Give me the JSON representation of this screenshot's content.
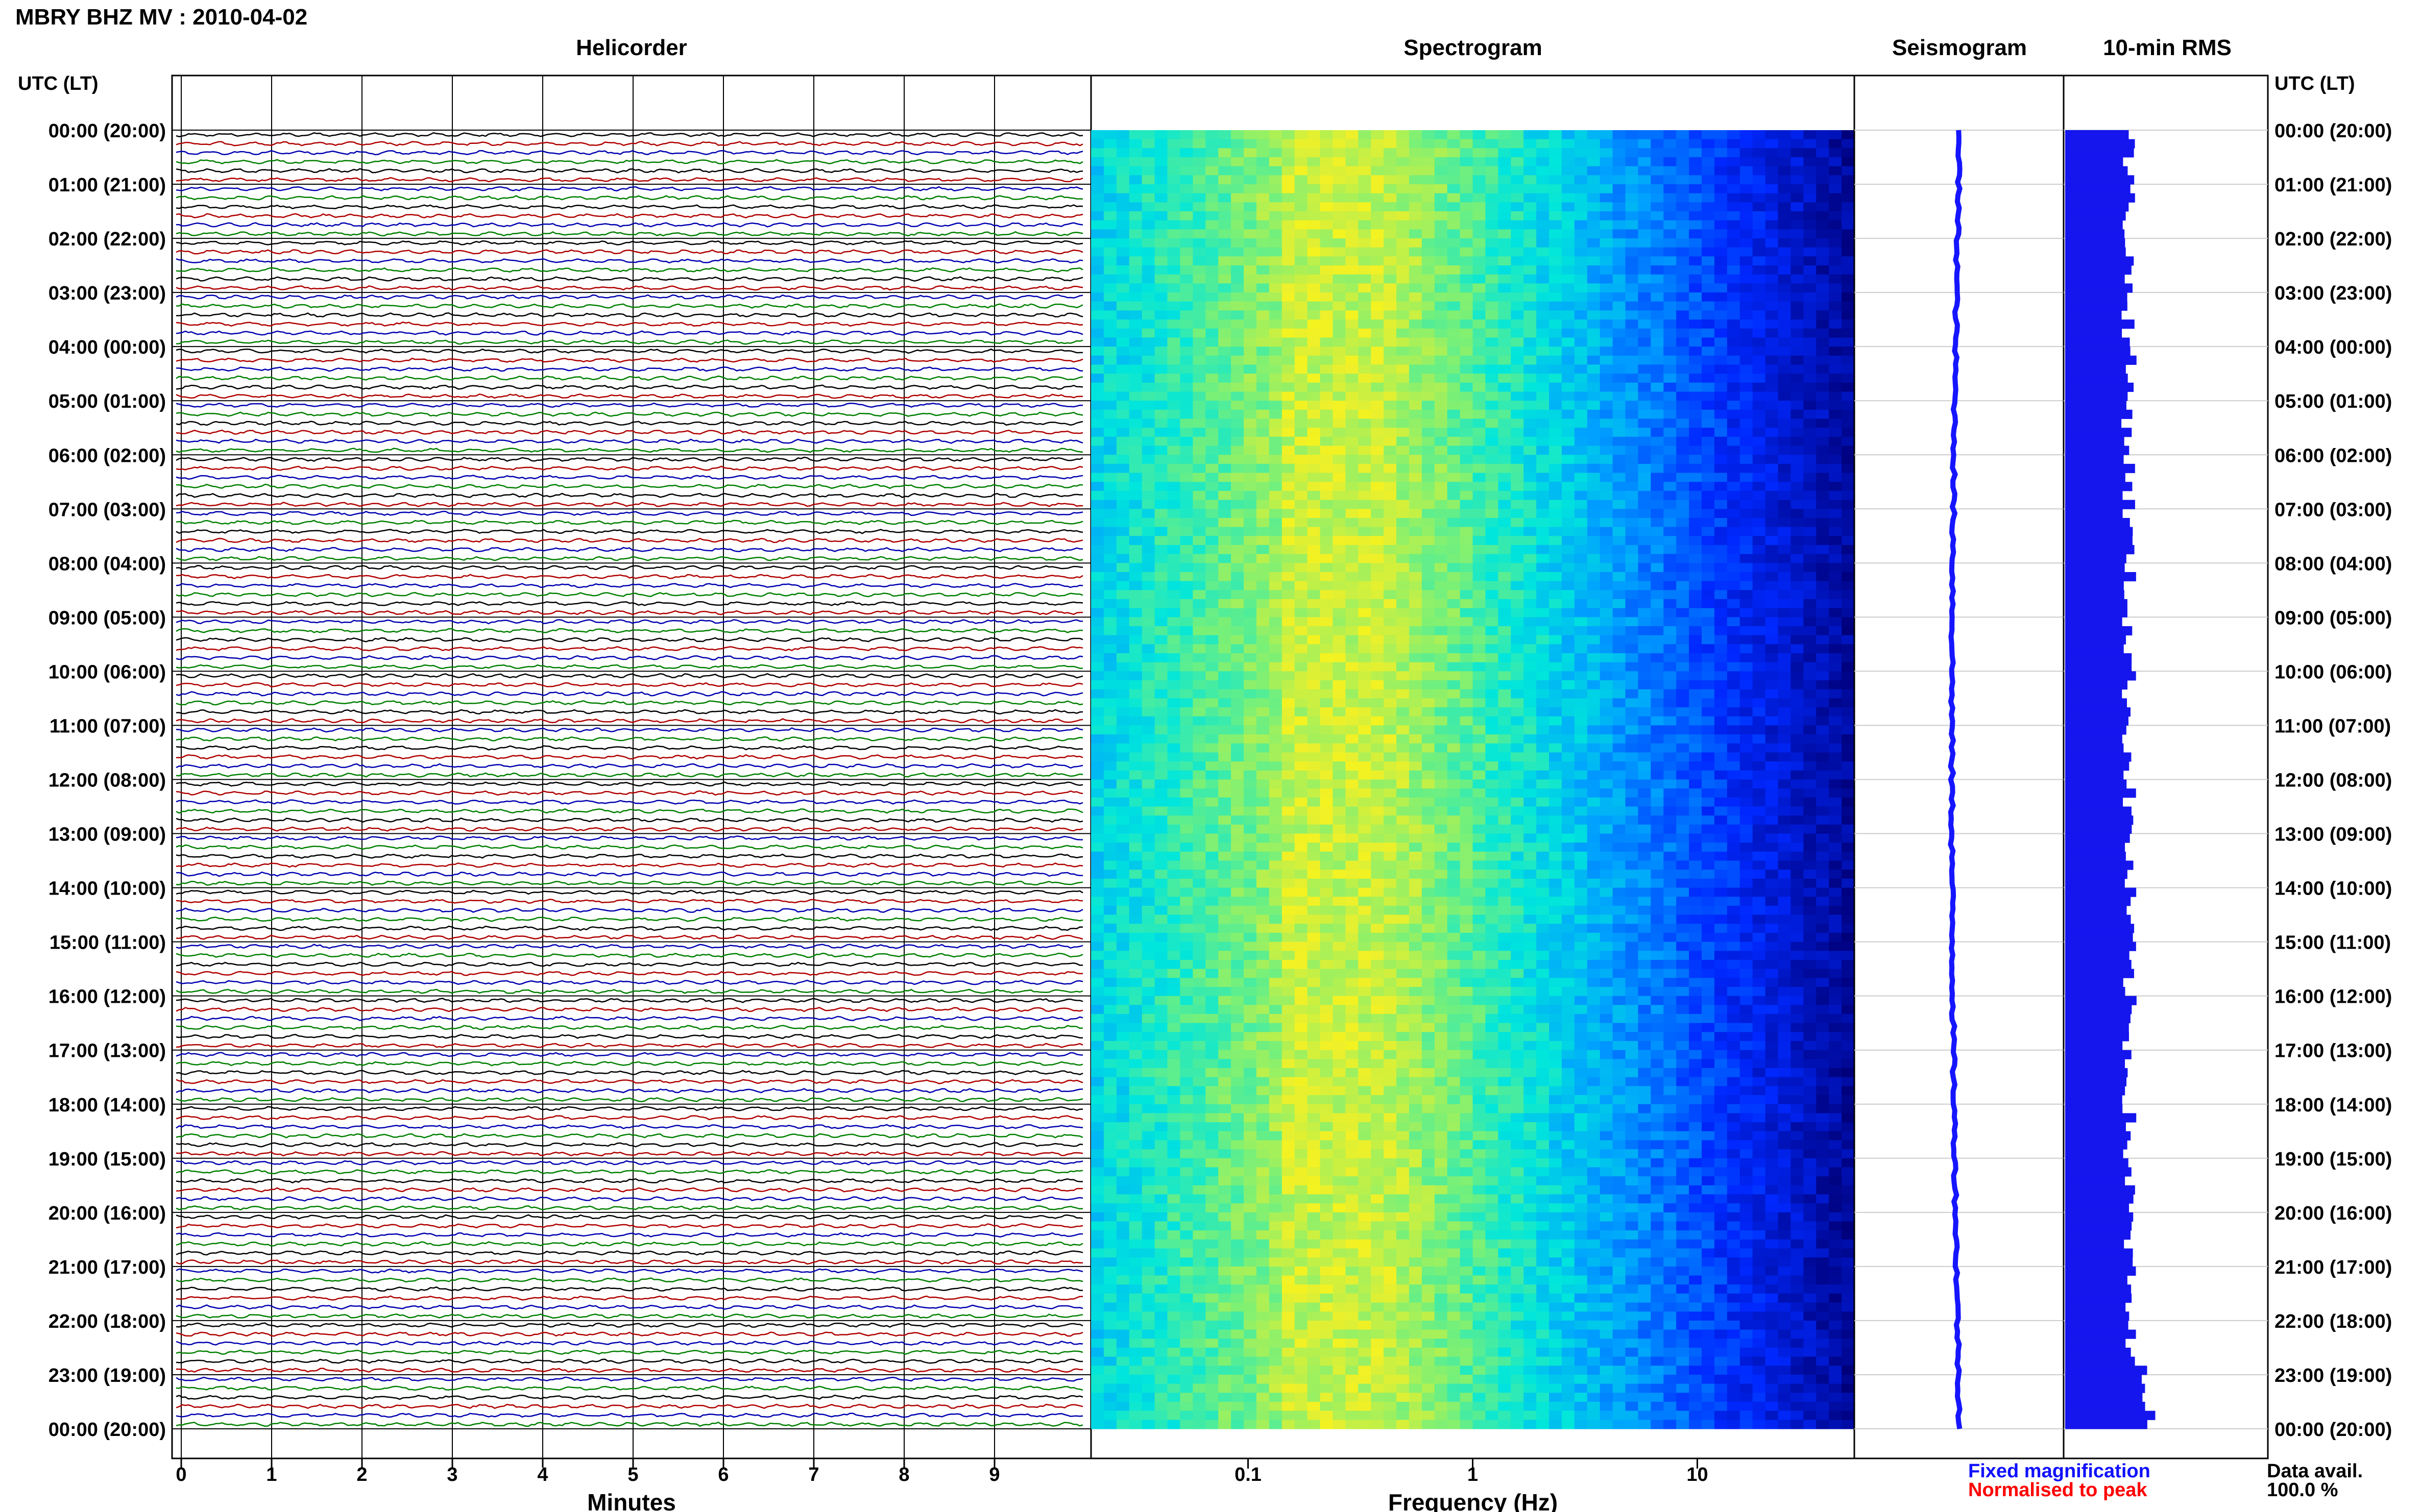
{
  "title": "MBRY BHZ MV : 2010-04-02",
  "panels": {
    "helicorder": "Helicorder",
    "spectrogram": "Spectrogram",
    "seismogram": "Seismogram",
    "rms": "10-min RMS"
  },
  "axis_header_left": "UTC (LT)",
  "axis_header_right": "UTC (LT)",
  "x_label_minutes": "Minutes",
  "x_label_frequency": "Frequency (Hz)",
  "legend": {
    "fixed": "Fixed magnification",
    "normalised": "Normalised to peak",
    "fixed_color": "#1010ff",
    "normalised_color": "#ff0000"
  },
  "data_avail_label": "Data avail.",
  "data_avail_value": "100.0 %",
  "colors": {
    "trace_cycle": [
      "#000000",
      "#b00000",
      "#0000b0",
      "#008000"
    ],
    "rms_bar": "#1515ee",
    "spectrogram_low": "#00007a",
    "spectrogram_high": "#ffff00"
  },
  "chart_data": [
    {
      "type": "line",
      "name": "helicorder",
      "title": "Helicorder",
      "xlabel": "Minutes",
      "xlim": [
        0,
        10
      ],
      "xticks": [
        "0",
        "1",
        "2",
        "3",
        "4",
        "5",
        "6",
        "7",
        "8",
        "9"
      ],
      "rows_per_hour": 6,
      "hour_labels": [
        "00:00 (20:00)",
        "01:00 (21:00)",
        "02:00 (22:00)",
        "03:00 (23:00)",
        "04:00 (00:00)",
        "05:00 (01:00)",
        "06:00 (02:00)",
        "07:00 (03:00)",
        "08:00 (04:00)",
        "09:00 (05:00)",
        "10:00 (06:00)",
        "11:00 (07:00)",
        "12:00 (08:00)",
        "13:00 (09:00)",
        "14:00 (10:00)",
        "15:00 (11:00)",
        "16:00 (12:00)",
        "17:00 (13:00)",
        "18:00 (14:00)",
        "19:00 (15:00)",
        "20:00 (16:00)",
        "21:00 (17:00)",
        "22:00 (18:00)",
        "23:00 (19:00)",
        "00:00 (20:00)"
      ]
    },
    {
      "type": "heatmap",
      "name": "spectrogram",
      "title": "Spectrogram",
      "xlabel": "Frequency (Hz)",
      "xscale": "log",
      "xlim": [
        0.02,
        50
      ],
      "xticks": [
        "0.1",
        "1",
        "10"
      ],
      "peak_band_hz": [
        0.15,
        0.4
      ]
    },
    {
      "type": "line",
      "name": "seismogram",
      "title": "Seismogram"
    },
    {
      "type": "bar",
      "name": "rms",
      "title": "10-min RMS",
      "orientation": "horizontal"
    }
  ]
}
